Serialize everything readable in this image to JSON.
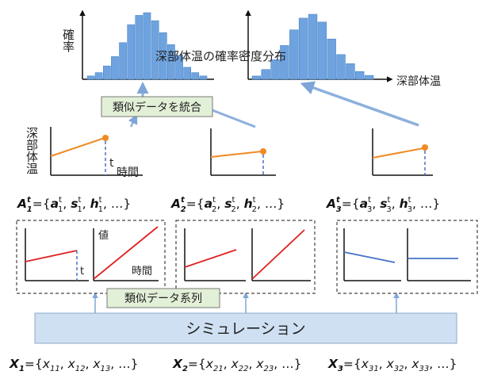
{
  "labels": {
    "prob_axis": "確率",
    "deep_temp_axis": "深部体温",
    "time_axis": "時間",
    "t_marker": "t",
    "value_axis": "値",
    "time_axis_small": "時間",
    "t_marker_small": "t",
    "hist_title": "深部体温の確率密度分布",
    "deep_temp_xlabel": "深部体温",
    "merge_box": "類似データを統合",
    "similar_series_box": "類似データ系列",
    "simulation_box": "シミュレーション"
  },
  "formulas": {
    "a": [
      {
        "name": "A",
        "sup": "t",
        "sub": "1",
        "terms": [
          "a",
          "s",
          "h"
        ],
        "tail": "…}"
      },
      {
        "name": "A",
        "sup": "t",
        "sub": "2",
        "terms": [
          "a",
          "s",
          "h"
        ],
        "tail": "…}"
      },
      {
        "name": "A",
        "sup": "t",
        "sub": "3",
        "terms": [
          "a",
          "s",
          "h"
        ],
        "tail": "…}"
      }
    ],
    "x": [
      {
        "name": "X",
        "sub": "1",
        "items": [
          "11",
          "12",
          "13"
        ],
        "tail": "…}"
      },
      {
        "name": "X",
        "sub": "2",
        "items": [
          "21",
          "22",
          "23"
        ],
        "tail": "…}"
      },
      {
        "name": "X",
        "sub": "3",
        "items": [
          "31",
          "32",
          "33"
        ],
        "tail": "…}"
      }
    ]
  },
  "histograms": [
    {
      "bars": [
        0.05,
        0.1,
        0.2,
        0.34,
        0.55,
        0.82,
        0.96,
        1.0,
        0.88,
        0.7,
        0.52,
        0.36,
        0.18,
        0.1,
        0.05
      ]
    },
    {
      "bars": [
        0.05,
        0.15,
        0.3,
        0.52,
        0.76,
        0.94,
        1.0,
        0.88,
        0.62,
        0.38,
        0.24,
        0.12,
        0.06
      ]
    }
  ],
  "colors": {
    "hist_bar": "#6fa3df",
    "hist_stroke": "#4a86c8",
    "orange": "#f08a22",
    "red": "#e02020",
    "blue_line": "#4472c4",
    "arrow": "#8db0dc",
    "sim_fill": "#cfe0f3",
    "merge_fill": "#e3f0d8"
  }
}
